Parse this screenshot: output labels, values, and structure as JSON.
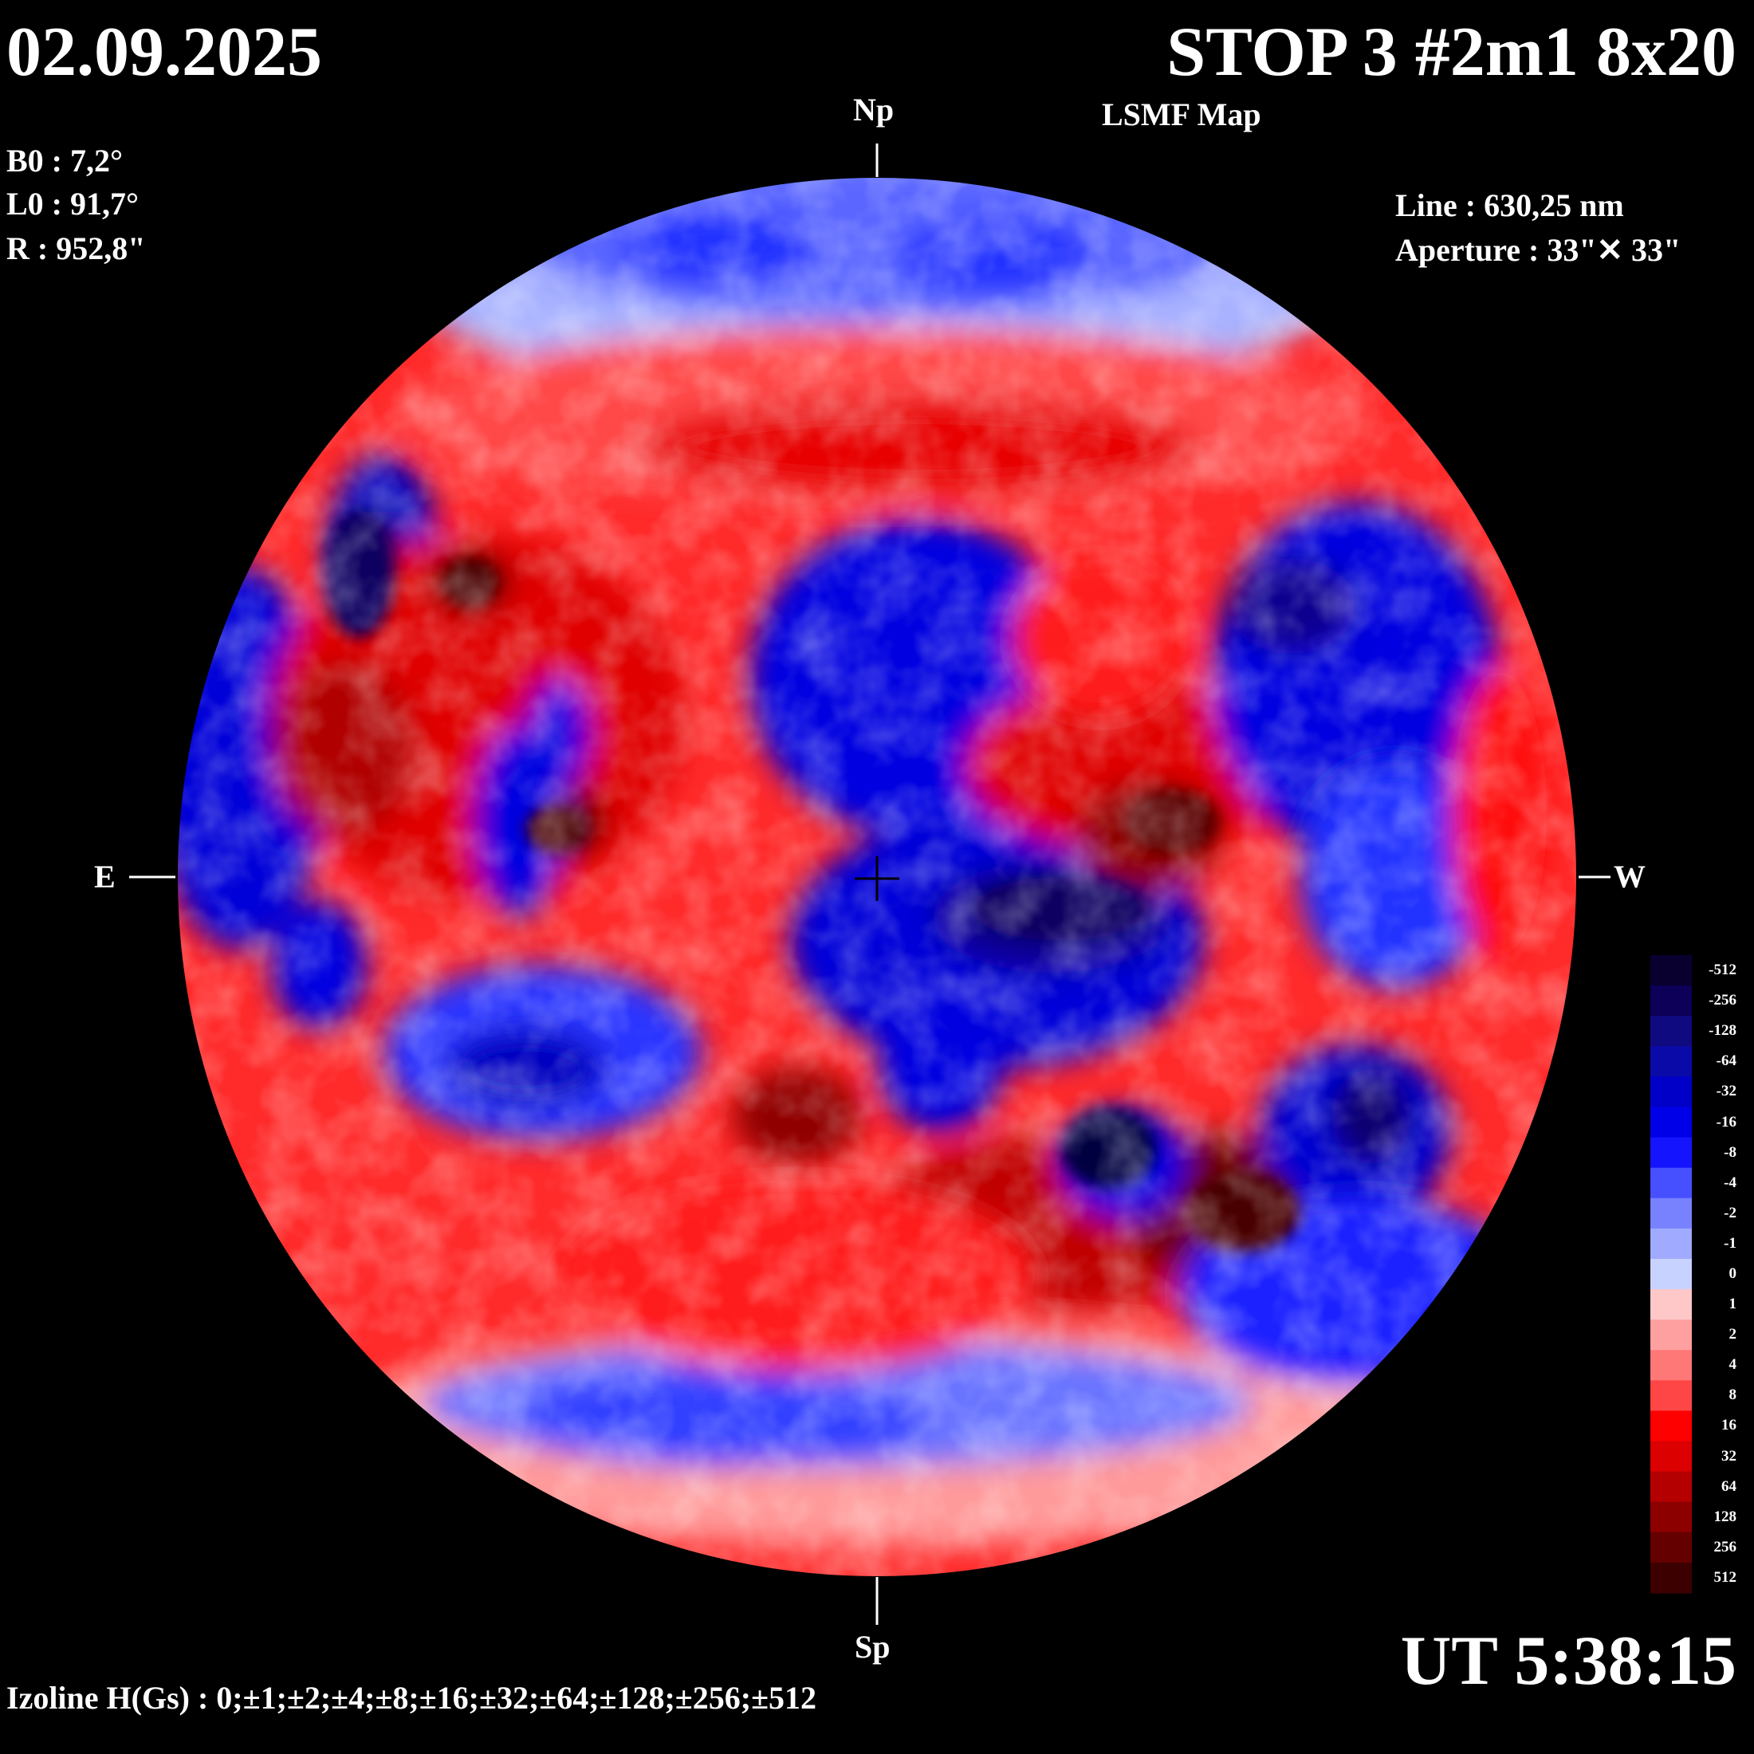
{
  "date": "02.09.2025",
  "title": "STOP 3 #2m1 8x20",
  "map_type": "LSMF  Map",
  "params": {
    "b0": "B0 : 7,2°",
    "l0": "L0 : 91,7°",
    "r": "R  : 952,8\""
  },
  "instrument": {
    "line": "Line :  630,25 nm",
    "aperture": "Aperture : 33\"✕ 33\""
  },
  "directions": {
    "north": "Np",
    "south": "Sp",
    "east": "E",
    "west": "W"
  },
  "time": "UT 5:38:15",
  "isolines": "Izoline H(Gs) : 0;±1;±2;±4;±8;±16;±32;±64;±128;±256;±512",
  "colors": {
    "negative_strong": "#1a0033",
    "negative": "#0000e0",
    "neutral": "#ffffff",
    "positive": "#ff0000",
    "positive_strong": "#330000"
  },
  "scale": {
    "labels": [
      "-512",
      "-256",
      "-128",
      "-64",
      "-32",
      "-16",
      "-8",
      "-4",
      "-2",
      "-1",
      "0",
      "1",
      "2",
      "4",
      "8",
      "16",
      "32",
      "64",
      "128",
      "256",
      "512"
    ],
    "colors": [
      "#0a0030",
      "#0c0058",
      "#0f0a80",
      "#0a0aa8",
      "#0000c8",
      "#0000e8",
      "#1414ff",
      "#4650ff",
      "#7882ff",
      "#a0aaff",
      "#c8d2ff",
      "#ffc8c8",
      "#ffa0a0",
      "#ff7878",
      "#ff4646",
      "#ff0000",
      "#dc0000",
      "#b40000",
      "#8c0000",
      "#640000",
      "#3c0000"
    ]
  }
}
